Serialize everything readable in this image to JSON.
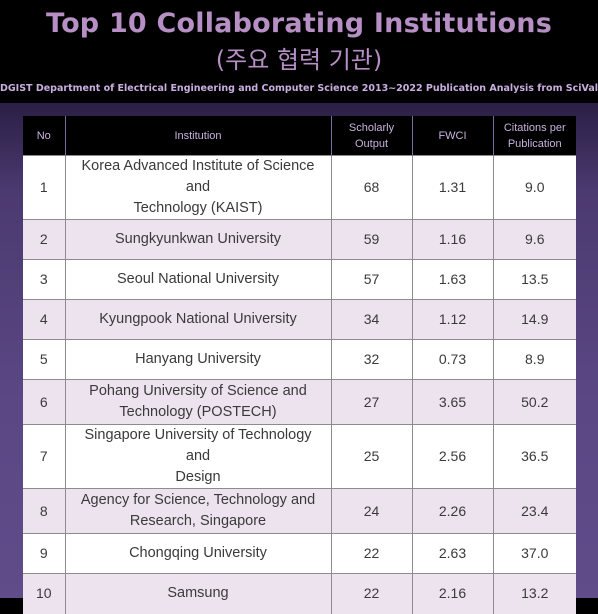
{
  "header": {
    "title": "Top 10 Collaborating Institutions",
    "title_ko": "(주요 협력 기관)",
    "subtitle": "DGIST Department of Electrical Engineering and Computer Science 2013~2022 Publication Analysis from SciVal"
  },
  "colors": {
    "title": "#b68fc4",
    "header_bg": "#000000",
    "panel_bg": "#5a4784",
    "row_alt": "#ede3ef"
  },
  "table": {
    "columns": {
      "no": "No",
      "institution": "Institution",
      "output_line1": "Scholarly",
      "output_line2": "Output",
      "fwci": "FWCI",
      "citations_line1": "Citations per",
      "citations_line2": "Publication"
    },
    "rows": [
      {
        "no": "1",
        "institution_line1": "Korea Advanced Institute of Science and",
        "institution_line2": "Technology (KAIST)",
        "output": "68",
        "fwci": "1.31",
        "citations": "9.0"
      },
      {
        "no": "2",
        "institution_line1": "Sungkyunkwan University",
        "institution_line2": "",
        "output": "59",
        "fwci": "1.16",
        "citations": "9.6"
      },
      {
        "no": "3",
        "institution_line1": "Seoul National University",
        "institution_line2": "",
        "output": "57",
        "fwci": "1.63",
        "citations": "13.5"
      },
      {
        "no": "4",
        "institution_line1": "Kyungpook National University",
        "institution_line2": "",
        "output": "34",
        "fwci": "1.12",
        "citations": "14.9"
      },
      {
        "no": "5",
        "institution_line1": "Hanyang University",
        "institution_line2": "",
        "output": "32",
        "fwci": "0.73",
        "citations": "8.9"
      },
      {
        "no": "6",
        "institution_line1": "Pohang University of Science and",
        "institution_line2": "Technology (POSTECH)",
        "output": "27",
        "fwci": "3.65",
        "citations": "50.2"
      },
      {
        "no": "7",
        "institution_line1": "Singapore University of Technology and",
        "institution_line2": "Design",
        "output": "25",
        "fwci": "2.56",
        "citations": "36.5"
      },
      {
        "no": "8",
        "institution_line1": "Agency for Science, Technology and",
        "institution_line2": "Research, Singapore",
        "output": "24",
        "fwci": "2.26",
        "citations": "23.4"
      },
      {
        "no": "9",
        "institution_line1": "Chongqing University",
        "institution_line2": "",
        "output": "22",
        "fwci": "2.63",
        "citations": "37.0"
      },
      {
        "no": "10",
        "institution_line1": "Samsung",
        "institution_line2": "",
        "output": "22",
        "fwci": "2.16",
        "citations": "13.2"
      }
    ]
  }
}
